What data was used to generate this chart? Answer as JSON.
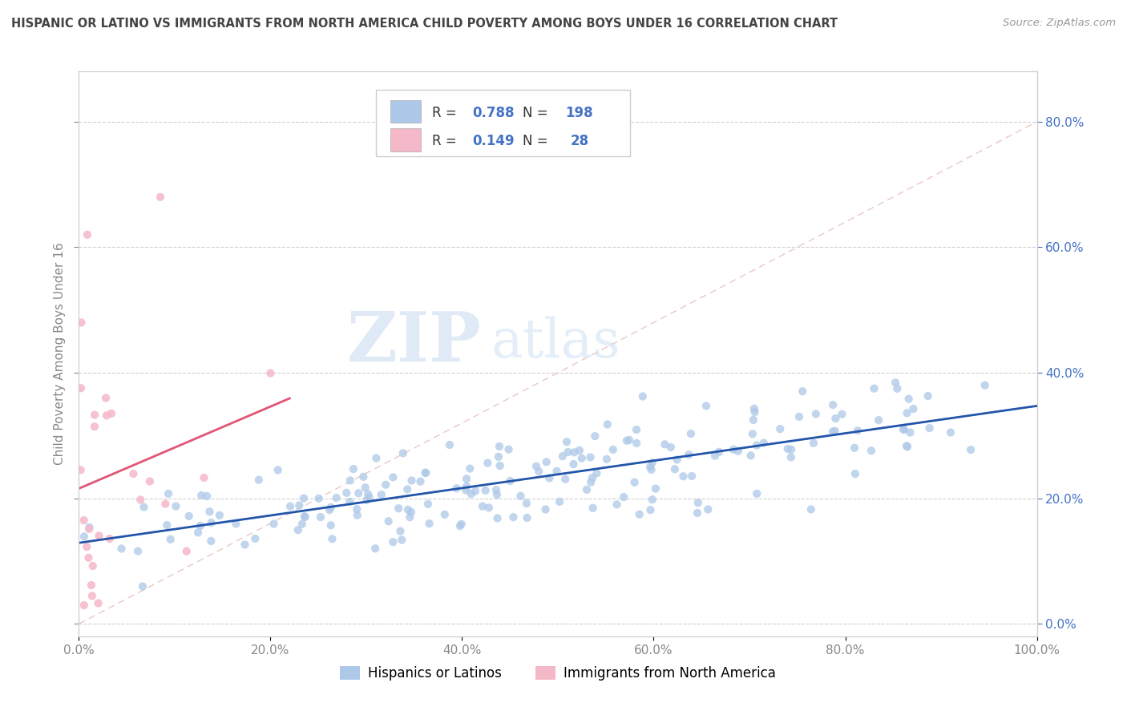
{
  "title": "HISPANIC OR LATINO VS IMMIGRANTS FROM NORTH AMERICA CHILD POVERTY AMONG BOYS UNDER 16 CORRELATION CHART",
  "source": "Source: ZipAtlas.com",
  "ylabel": "Child Poverty Among Boys Under 16",
  "xlim": [
    0,
    1.0
  ],
  "ylim": [
    -0.02,
    0.88
  ],
  "xticks": [
    0.0,
    0.2,
    0.4,
    0.6,
    0.8,
    1.0
  ],
  "xticklabels": [
    "0.0%",
    "20.0%",
    "40.0%",
    "60.0%",
    "80.0%",
    "100.0%"
  ],
  "yticks": [
    0.0,
    0.2,
    0.4,
    0.6,
    0.8
  ],
  "yticklabels": [
    "0.0%",
    "20.0%",
    "40.0%",
    "60.0%",
    "80.0%"
  ],
  "series1_color": "#adc8e8",
  "series2_color": "#f5b8c8",
  "trendline1_color": "#2255aa",
  "trendline2_color": "#e05575",
  "watermark_zip": "ZIP",
  "watermark_atlas": "atlas",
  "background_color": "#ffffff",
  "grid_color": "#d0d0d0",
  "title_color": "#444444",
  "axis_color": "#888888",
  "legend_text_color": "#4472c4",
  "right_ytick_color": "#4472c4",
  "diag_color": "#e0b0b0",
  "N1": 198,
  "N2": 28,
  "seed1": 7,
  "seed2": 15,
  "legend_r1": "0.788",
  "legend_n1": "198",
  "legend_r2": "0.149",
  "legend_n2": "28"
}
